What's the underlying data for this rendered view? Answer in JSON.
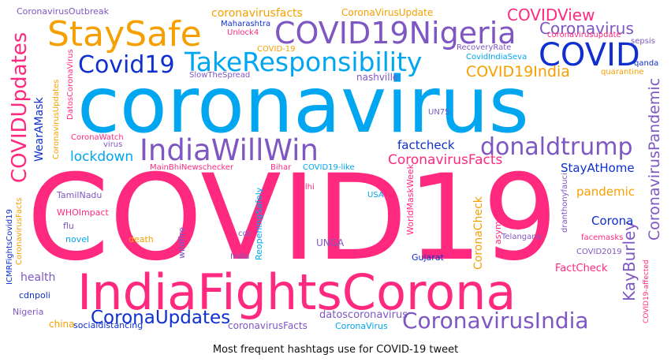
{
  "caption": "Most frequent hashtags use for COVID-19 tweet",
  "palette": {
    "pink": "#ff2a7f",
    "blue": "#00a6f0",
    "purple": "#7e57c2",
    "navy": "#0f2fd0",
    "orange": "#f5a000"
  },
  "words": [
    "COVID19",
    "coronavirus",
    "IndiaFightsCorona",
    "COVID19Nigeria",
    "StaySafe",
    "COVID",
    "Covid19",
    "TakeResponsibility",
    "IndiaWillWin",
    "donaldtrump",
    "CoronavirusIndia",
    "CoronaUpdates",
    "COVIDUpdates",
    "Coronavirus",
    "COVIDView",
    "COVID19India",
    "CoronavirusPandemic",
    "KayBurley",
    "CoronavirusFacts",
    "lockdown",
    "factcheck",
    "StayAtHome",
    "pandemic",
    "Corona",
    "coronavirusfacts",
    "CoronaVirusUpdate",
    "CoronavirusOutbreak",
    "WearAMask",
    "health",
    "CoronaCheck",
    "FactCheck",
    "UNGA",
    "datoscoronavirus",
    "coronavirusFacts",
    "socialdistancing",
    "CoronaVirus",
    "china",
    "Nigeria",
    "cdnpoli",
    "ICMRFightsCovid19",
    "CoronavirusFacts",
    "TamilNadu",
    "WHOImpact",
    "flu",
    "novel",
    "death",
    "wildfire",
    "cdc",
    "India",
    "ReopeningSafely",
    "Delhi",
    "USA",
    "WorldMaskWeek",
    "Gujarat",
    "asymptomatic",
    "Telangana",
    "facemasks",
    "COVID2019",
    "COVID19-affected",
    "dranthonyfauci",
    "MainBhiNewschecker",
    "Bihar",
    "COVID19-like",
    "CoronaWatch",
    "virus",
    "CoronavirusUpdates",
    "DatosCoronaVirus",
    "UN75",
    "nashville",
    "SlowTheSpread",
    "Maharashtra",
    "Unlock4",
    "COVID-19",
    "RecoveryRate",
    "CovidIndiaSeva",
    "coronavirusupdate",
    "sepsis",
    "qanda",
    "quarantine"
  ]
}
